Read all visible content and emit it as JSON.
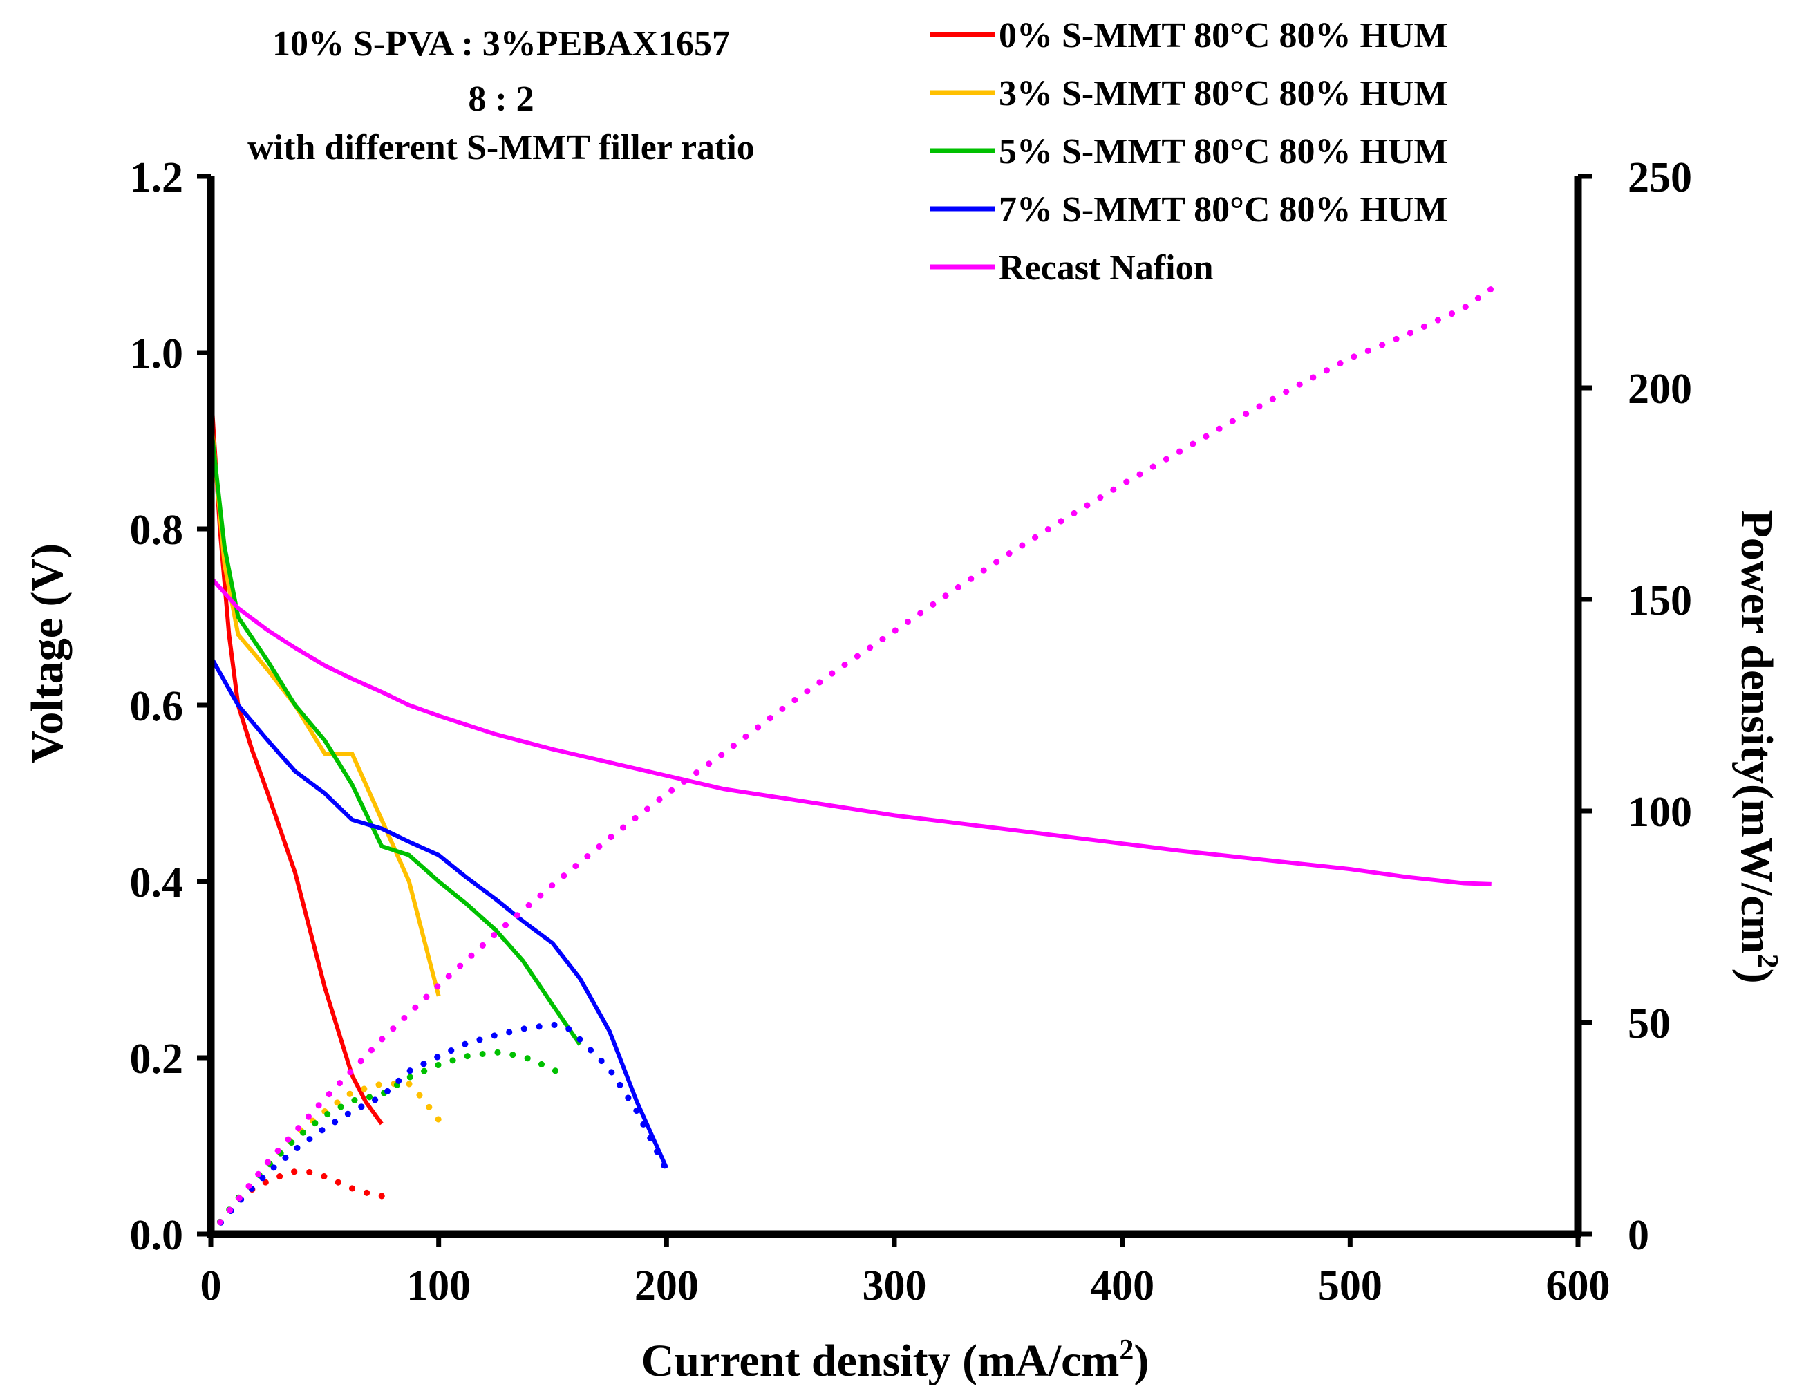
{
  "chart_data": {
    "type": "line",
    "title_lines": [
      "10% S-PVA : 3%PEBAX1657",
      "8 : 2",
      "with different  S-MMT filler ratio"
    ],
    "xlabel": "Current density (mA/cm",
    "xlabel_sup": "2",
    "xlabel_close": ")",
    "ylabel": "Voltage  (V)",
    "y2label": "Power density(mW/cm",
    "y2label_sup": "2",
    "y2label_close": ")",
    "xlim": [
      0,
      600
    ],
    "ylim": [
      0,
      1.2
    ],
    "y2lim": [
      0,
      250
    ],
    "xticks": [
      0,
      100,
      200,
      300,
      400,
      500,
      600
    ],
    "yticks": [
      0.0,
      0.2,
      0.4,
      0.6,
      0.8,
      1.0,
      1.2
    ],
    "yticklabels": [
      "0.0",
      "0.2",
      "0.4",
      "0.6",
      "0.8",
      "1.0",
      "1.2"
    ],
    "y2ticks": [
      0,
      50,
      100,
      150,
      200,
      250
    ],
    "legend_position": "top-right",
    "series": [
      {
        "name": "0% S-MMT 80°C 80% HUM",
        "color": "#ff0000",
        "voltage": {
          "x": [
            0,
            4,
            8,
            12,
            18,
            25,
            37,
            50,
            62,
            68,
            75
          ],
          "y": [
            0.96,
            0.8,
            0.68,
            0.6,
            0.55,
            0.5,
            0.41,
            0.28,
            0.18,
            0.15,
            0.125
          ]
        },
        "power": {
          "x": [
            0,
            6,
            12,
            18,
            25,
            31,
            37,
            44,
            50,
            56,
            62,
            68,
            75
          ],
          "y": [
            0,
            4,
            8,
            10.5,
            12.5,
            13.8,
            14.8,
            14.6,
            13.6,
            12.2,
            10.8,
            9.8,
            9.0
          ]
        }
      },
      {
        "name": "3% S-MMT 80°C 80% HUM",
        "color": "#ffc000",
        "voltage": {
          "x": [
            0,
            6,
            12,
            25,
            37,
            50,
            62,
            75,
            87,
            100
          ],
          "y": [
            0.93,
            0.76,
            0.68,
            0.64,
            0.6,
            0.545,
            0.545,
            0.47,
            0.4,
            0.27
          ]
        },
        "power": {
          "x": [
            0,
            12,
            25,
            37,
            50,
            62,
            75,
            87,
            93,
            100
          ],
          "y": [
            0,
            8,
            16.5,
            23.5,
            29,
            33.5,
            35.5,
            35.5,
            32,
            27
          ]
        }
      },
      {
        "name": "5% S-MMT 80°C 80% HUM",
        "color": "#00c000",
        "voltage": {
          "x": [
            0,
            6,
            12,
            25,
            37,
            50,
            62,
            75,
            87,
            100,
            112,
            125,
            137,
            150,
            162
          ],
          "y": [
            0.92,
            0.78,
            0.7,
            0.65,
            0.6,
            0.56,
            0.51,
            0.44,
            0.43,
            0.4,
            0.375,
            0.345,
            0.31,
            0.26,
            0.215
          ]
        },
        "power": {
          "x": [
            0,
            12,
            25,
            37,
            50,
            62,
            75,
            87,
            100,
            112,
            125,
            137,
            150,
            156
          ],
          "y": [
            0,
            8.5,
            16,
            22.5,
            28,
            31.5,
            33,
            37,
            40,
            42,
            43,
            42,
            39,
            37
          ]
        }
      },
      {
        "name": "7% S-MMT 80°C 80% HUM",
        "color": "#0000ff",
        "voltage": {
          "x": [
            0,
            12,
            25,
            37,
            50,
            62,
            75,
            87,
            100,
            112,
            125,
            137,
            150,
            162,
            175,
            187,
            200
          ],
          "y": [
            0.655,
            0.6,
            0.56,
            0.525,
            0.5,
            0.47,
            0.46,
            0.445,
            0.43,
            0.405,
            0.38,
            0.355,
            0.33,
            0.29,
            0.23,
            0.15,
            0.075
          ]
        },
        "power": {
          "x": [
            0,
            12,
            25,
            37,
            50,
            62,
            75,
            87,
            100,
            112,
            125,
            137,
            150,
            156,
            162,
            175,
            187,
            200
          ],
          "y": [
            0,
            7.5,
            14.5,
            20,
            25,
            29,
            32.5,
            38.5,
            42,
            45,
            47,
            48.5,
            49.5,
            49,
            46,
            39,
            29,
            15
          ]
        }
      },
      {
        "name": "Recast Nafion",
        "color": "#ff00ff",
        "voltage": {
          "x": [
            0,
            12,
            25,
            37,
            50,
            62,
            75,
            87,
            100,
            125,
            150,
            175,
            200,
            225,
            250,
            275,
            300,
            325,
            350,
            375,
            400,
            425,
            450,
            475,
            500,
            525,
            550,
            562
          ],
          "y": [
            0.745,
            0.71,
            0.685,
            0.665,
            0.645,
            0.63,
            0.615,
            0.6,
            0.588,
            0.567,
            0.55,
            0.535,
            0.52,
            0.505,
            0.495,
            0.485,
            0.475,
            0.467,
            0.459,
            0.451,
            0.443,
            0.435,
            0.428,
            0.421,
            0.414,
            0.405,
            0.398,
            0.397
          ]
        },
        "power": {
          "x": [
            0,
            25,
            50,
            75,
            100,
            125,
            150,
            175,
            200,
            225,
            250,
            275,
            300,
            325,
            350,
            375,
            400,
            425,
            450,
            475,
            500,
            525,
            550,
            562
          ],
          "y": [
            0,
            17,
            32,
            46,
            58.8,
            71,
            82.5,
            93.6,
            104,
            113.6,
            123.8,
            133.4,
            142.5,
            151.8,
            160.7,
            169.1,
            177.2,
            184.9,
            192.6,
            200,
            207,
            212.6,
            218.9,
            223.4
          ]
        }
      }
    ]
  }
}
